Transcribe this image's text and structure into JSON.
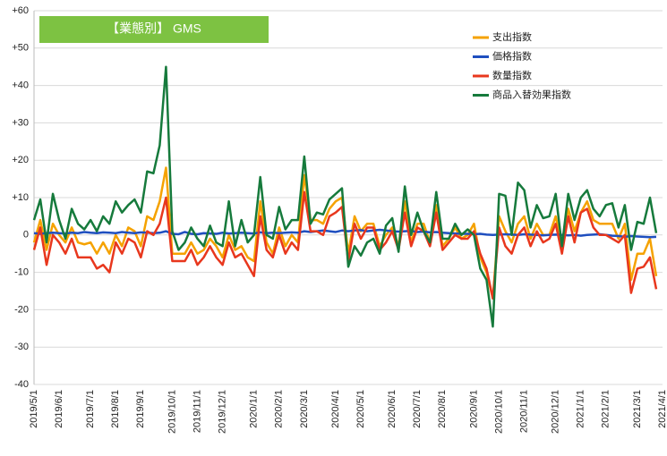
{
  "chart_data": {
    "type": "line",
    "title": "【業態別】 GMS",
    "title_color": "#7dc242",
    "categories": [
      "2019/5/1",
      null,
      null,
      null,
      "2019/6/1",
      null,
      null,
      null,
      null,
      "2019/7/1",
      null,
      null,
      null,
      "2019/8/1",
      null,
      null,
      null,
      "2019/9/1",
      null,
      null,
      null,
      null,
      "2019/10/1",
      null,
      null,
      null,
      "2019/11/1",
      null,
      null,
      null,
      "2019/12/1",
      null,
      null,
      null,
      null,
      "2020/1/1",
      null,
      null,
      null,
      "2020/2/1",
      null,
      null,
      null,
      "2020/3/1",
      null,
      null,
      null,
      null,
      "2020/4/1",
      null,
      null,
      null,
      "2020/5/1",
      null,
      null,
      null,
      null,
      "2020/6/1",
      null,
      null,
      null,
      "2020/7/1",
      null,
      null,
      null,
      "2020/8/1",
      null,
      null,
      null,
      null,
      "2020/9/1",
      null,
      null,
      null,
      "2020/10/1",
      null,
      null,
      null,
      "2020/11/1",
      null,
      null,
      null,
      null,
      "2020/12/1",
      null,
      null,
      null,
      "2021/1/1",
      null,
      null,
      null,
      "2021/2/1",
      null,
      null,
      null,
      null,
      "2021/3/1",
      null,
      null,
      null,
      "2021/4/1"
    ],
    "series": [
      {
        "name": "支出指数",
        "color": "#f5a200",
        "values": [
          -2,
          4,
          -4,
          3,
          0,
          -2,
          2,
          -2,
          -2.5,
          -2,
          -5,
          -2,
          -5,
          0,
          -3,
          2,
          1,
          -3,
          5,
          4,
          9,
          18,
          -5,
          -5,
          -5,
          -2,
          -5,
          -4,
          -1,
          -3,
          -6,
          0,
          -4,
          -3,
          -6,
          -7,
          9,
          -2,
          -5,
          2,
          -3,
          0,
          -2,
          16,
          4,
          4,
          3,
          7,
          9,
          10,
          -5,
          5,
          1,
          3,
          3,
          -3,
          0,
          2,
          -3,
          9,
          -2,
          3,
          3,
          -2,
          8,
          -3,
          -1,
          2,
          -1,
          0,
          3,
          -6,
          -10,
          -17,
          5,
          1,
          -2,
          3,
          5,
          -1,
          3,
          0,
          0,
          5,
          -3,
          7,
          1,
          6,
          9,
          4,
          3,
          3,
          3,
          -1,
          3,
          -12,
          -5,
          -5,
          -1,
          -11,
          null
        ]
      },
      {
        "name": "価格指数",
        "color": "#1f4fbf",
        "values": [
          0.5,
          0.3,
          0.5,
          0.6,
          0.5,
          0.4,
          0.6,
          0.5,
          0.8,
          0.6,
          0.5,
          0.7,
          0.6,
          0.5,
          0.8,
          0.6,
          0.5,
          0.7,
          0.6,
          0.5,
          0.6,
          1,
          0.3,
          0.2,
          0.8,
          0.3,
          0.2,
          0.5,
          0.4,
          0.3,
          0.6,
          0.4,
          0.5,
          0.6,
          0.5,
          0.4,
          0.7,
          0.5,
          0.6,
          0.5,
          0.6,
          0.7,
          0.6,
          1,
          0.8,
          1,
          1.2,
          1,
          0.8,
          1.2,
          1,
          1.2,
          1.3,
          1,
          1.2,
          1.4,
          1.2,
          1,
          0.9,
          1,
          1.1,
          0.8,
          0.9,
          0.7,
          0.8,
          0.6,
          0.5,
          0.4,
          0.3,
          0.3,
          0.2,
          0.3,
          0.1,
          0,
          0.1,
          0.2,
          0.1,
          0,
          0.2,
          0.1,
          0,
          -0.1,
          0,
          0.1,
          0,
          -0.1,
          0,
          -0.2,
          0,
          0.1,
          0.2,
          0,
          -0.2,
          -0.3,
          -0.5,
          -0.3,
          -0.4,
          -0.5,
          -0.6,
          -0.5,
          null
        ]
      },
      {
        "name": "数量指数",
        "color": "#e8371d",
        "values": [
          -4,
          2,
          -8,
          0,
          -2,
          -5,
          -1,
          -6,
          -6,
          -6,
          -9,
          -8,
          -10,
          -2,
          -5,
          -1,
          -2,
          -6,
          1,
          0,
          3,
          10,
          -7,
          -7,
          -7,
          -4,
          -8,
          -6,
          -3,
          -6,
          -8,
          -2,
          -6,
          -5,
          -8,
          -11,
          5,
          -4,
          -6,
          0,
          -5,
          -2,
          -4,
          11.5,
          1,
          1,
          0,
          5,
          6,
          7.5,
          -7,
          3,
          -1,
          2,
          2,
          -4,
          -2,
          1,
          -4,
          6,
          -3,
          2,
          1,
          -3,
          6,
          -4,
          -2,
          0,
          -1,
          -1,
          1,
          -5,
          -9,
          -17,
          2,
          -3,
          -5,
          0,
          2,
          -3,
          1,
          -2,
          -1,
          3,
          -5,
          5,
          -2,
          6,
          7,
          2,
          0,
          0,
          -1,
          -2,
          0,
          -15.5,
          -9,
          -8.5,
          -6,
          -14.5,
          null
        ]
      },
      {
        "name": "商品入替効果指数",
        "color": "#167a3c",
        "values": [
          4,
          9.5,
          -2,
          11,
          4,
          -1,
          7,
          3,
          1.5,
          4,
          1,
          5,
          3,
          9,
          6,
          8,
          9.5,
          6,
          17,
          16.5,
          24,
          45,
          1,
          -4,
          -2,
          2,
          -1,
          -3,
          2.5,
          -2,
          -3,
          9,
          -3,
          4,
          -2,
          0,
          15.5,
          0,
          -1,
          7.5,
          1.5,
          4,
          4,
          21,
          3,
          6,
          5.5,
          9.5,
          11,
          12.5,
          -8.5,
          -3,
          -5.5,
          -2,
          -1,
          -5,
          2.5,
          4.5,
          -4.5,
          13,
          0,
          6,
          1,
          -2,
          11.5,
          -1,
          -1,
          3,
          0,
          1.5,
          0,
          -9,
          -12,
          -24.5,
          11,
          10.5,
          0,
          14,
          12,
          2,
          8,
          4.5,
          5,
          11,
          -3,
          11,
          4,
          10,
          12,
          7,
          5,
          8,
          8.5,
          2,
          8,
          -4,
          3.5,
          3,
          10,
          0.5,
          null
        ]
      }
    ],
    "ylim": [
      -40,
      60
    ],
    "yticks": [
      {
        "value": 60,
        "label": "+60"
      },
      {
        "value": 50,
        "label": "+50"
      },
      {
        "value": 40,
        "label": "+40"
      },
      {
        "value": 30,
        "label": "+30"
      },
      {
        "value": 20,
        "label": "+20"
      },
      {
        "value": 10,
        "label": "+10"
      },
      0,
      -10,
      -20,
      -30,
      -40
    ],
    "grid": true
  }
}
